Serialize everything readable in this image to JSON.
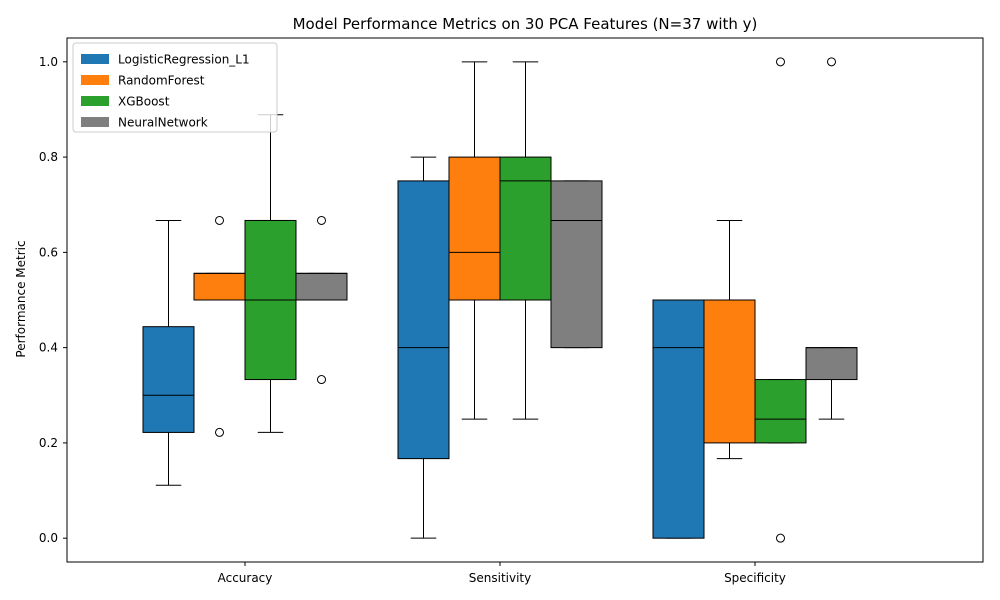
{
  "chart_data": {
    "type": "box",
    "title": "Model Performance Metrics on 30 PCA Features (N=37 with y)",
    "xlabel": "",
    "ylabel": "Performance Metric",
    "ylim": [
      -0.05,
      1.05
    ],
    "yticks": [
      "0.0",
      "0.2",
      "0.4",
      "0.6",
      "0.8",
      "1.0"
    ],
    "categories": [
      "Accuracy",
      "Sensitivity",
      "Specificity"
    ],
    "legend_position": "upper-left",
    "grid": false,
    "series": [
      {
        "name": "LogisticRegression_L1",
        "color": "#1f77b4",
        "boxes": [
          {
            "whislo": 0.111,
            "q1": 0.222,
            "med": 0.3,
            "q3": 0.444,
            "whishi": 0.667,
            "fliers": []
          },
          {
            "whislo": 0.0,
            "q1": 0.167,
            "med": 0.4,
            "q3": 0.75,
            "whishi": 0.8,
            "fliers": []
          },
          {
            "whislo": 0.0,
            "q1": 0.0,
            "med": 0.4,
            "q3": 0.5,
            "whishi": 0.5,
            "fliers": []
          }
        ]
      },
      {
        "name": "RandomForest",
        "color": "#ff7f0e",
        "boxes": [
          {
            "whislo": 0.5,
            "q1": 0.5,
            "med": 0.556,
            "q3": 0.556,
            "whishi": 0.556,
            "fliers": [
              0.667,
              0.222
            ]
          },
          {
            "whislo": 0.25,
            "q1": 0.5,
            "med": 0.6,
            "q3": 0.8,
            "whishi": 1.0,
            "fliers": []
          },
          {
            "whislo": 0.167,
            "q1": 0.2,
            "med": 0.5,
            "q3": 0.5,
            "whishi": 0.667,
            "fliers": []
          }
        ]
      },
      {
        "name": "XGBoost",
        "color": "#2ca02c",
        "boxes": [
          {
            "whislo": 0.222,
            "q1": 0.333,
            "med": 0.5,
            "q3": 0.667,
            "whishi": 0.889,
            "fliers": []
          },
          {
            "whislo": 0.25,
            "q1": 0.5,
            "med": 0.75,
            "q3": 0.8,
            "whishi": 1.0,
            "fliers": []
          },
          {
            "whislo": 0.2,
            "q1": 0.2,
            "med": 0.25,
            "q3": 0.333,
            "whishi": 0.333,
            "fliers": [
              1.0,
              0.0
            ]
          }
        ]
      },
      {
        "name": "NeuralNetwork",
        "color": "#7f7f7f",
        "boxes": [
          {
            "whislo": 0.5,
            "q1": 0.5,
            "med": 0.556,
            "q3": 0.556,
            "whishi": 0.556,
            "fliers": [
              0.667,
              0.333
            ]
          },
          {
            "whislo": 0.4,
            "q1": 0.4,
            "med": 0.667,
            "q3": 0.75,
            "whishi": 0.75,
            "fliers": []
          },
          {
            "whislo": 0.25,
            "q1": 0.333,
            "med": 0.4,
            "q3": 0.4,
            "whishi": 0.4,
            "fliers": [
              1.0
            ]
          }
        ]
      }
    ]
  }
}
